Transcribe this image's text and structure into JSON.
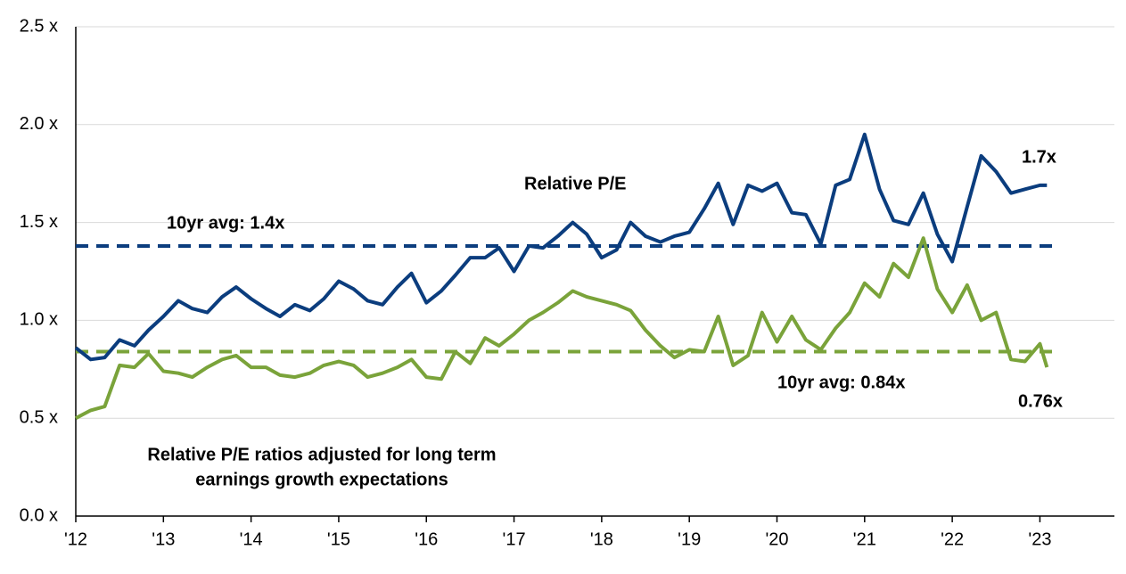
{
  "chart_data": {
    "type": "line",
    "x": [
      2012.0,
      2012.17,
      2012.33,
      2012.5,
      2012.67,
      2012.83,
      2013.0,
      2013.17,
      2013.33,
      2013.5,
      2013.67,
      2013.83,
      2014.0,
      2014.17,
      2014.33,
      2014.5,
      2014.67,
      2014.83,
      2015.0,
      2015.17,
      2015.33,
      2015.5,
      2015.67,
      2015.83,
      2016.0,
      2016.17,
      2016.33,
      2016.5,
      2016.67,
      2016.83,
      2017.0,
      2017.17,
      2017.33,
      2017.5,
      2017.67,
      2017.83,
      2018.0,
      2018.17,
      2018.33,
      2018.5,
      2018.67,
      2018.83,
      2019.0,
      2019.17,
      2019.33,
      2019.5,
      2019.67,
      2019.83,
      2020.0,
      2020.17,
      2020.33,
      2020.5,
      2020.67,
      2020.83,
      2021.0,
      2021.17,
      2021.33,
      2021.5,
      2021.67,
      2021.83,
      2022.0,
      2022.17,
      2022.33,
      2022.5,
      2022.67,
      2022.83,
      2023.0,
      2023.08
    ],
    "series": [
      {
        "name": "Relative P/E",
        "color": "#0b3d7e",
        "values": [
          0.86,
          0.8,
          0.81,
          0.9,
          0.87,
          0.95,
          1.02,
          1.1,
          1.06,
          1.04,
          1.12,
          1.17,
          1.11,
          1.06,
          1.02,
          1.08,
          1.05,
          1.11,
          1.2,
          1.16,
          1.1,
          1.08,
          1.17,
          1.24,
          1.09,
          1.15,
          1.23,
          1.32,
          1.32,
          1.37,
          1.25,
          1.38,
          1.37,
          1.43,
          1.5,
          1.44,
          1.32,
          1.36,
          1.5,
          1.43,
          1.4,
          1.43,
          1.45,
          1.57,
          1.7,
          1.49,
          1.69,
          1.66,
          1.7,
          1.55,
          1.54,
          1.39,
          1.69,
          1.72,
          1.95,
          1.67,
          1.51,
          1.49,
          1.65,
          1.44,
          1.3,
          1.58,
          1.84,
          1.76,
          1.65,
          1.67,
          1.69,
          1.69
        ]
      },
      {
        "name": "Relative P/E ratios adjusted for long term earnings growth expectations",
        "color": "#7aa33a",
        "values": [
          0.5,
          0.54,
          0.56,
          0.77,
          0.76,
          0.83,
          0.74,
          0.73,
          0.71,
          0.76,
          0.8,
          0.82,
          0.76,
          0.76,
          0.72,
          0.71,
          0.73,
          0.77,
          0.79,
          0.77,
          0.71,
          0.73,
          0.76,
          0.8,
          0.71,
          0.7,
          0.84,
          0.78,
          0.91,
          0.87,
          0.93,
          1.0,
          1.04,
          1.09,
          1.15,
          1.12,
          1.1,
          1.08,
          1.05,
          0.95,
          0.87,
          0.81,
          0.85,
          0.84,
          1.02,
          0.77,
          0.82,
          1.04,
          0.89,
          1.02,
          0.9,
          0.85,
          0.96,
          1.04,
          1.19,
          1.12,
          1.29,
          1.22,
          1.42,
          1.16,
          1.04,
          1.18,
          1.0,
          1.04,
          0.8,
          0.79,
          0.88,
          0.76
        ]
      }
    ],
    "averages": [
      {
        "label": "10yr avg: 1.4x",
        "value": 1.38,
        "color": "#0b3d7e"
      },
      {
        "label": "10yr avg: 0.84x",
        "value": 0.84,
        "color": "#7aa33a"
      }
    ],
    "annotations": [
      {
        "text": "Relative P/E",
        "color": "#0b3d7e"
      },
      {
        "text": "1.7x",
        "color": "#0b3d7e"
      },
      {
        "text": "0.76x",
        "color": "#7aa33a"
      },
      {
        "text": [
          "Relative P/E ratios adjusted for long term",
          "earnings growth expectations"
        ],
        "color": "#7aa33a"
      }
    ],
    "xlim": [
      2012,
      2023.85
    ],
    "xticks": [
      {
        "value": 2012,
        "label": "'12"
      },
      {
        "value": 2013,
        "label": "'13"
      },
      {
        "value": 2014,
        "label": "'14"
      },
      {
        "value": 2015,
        "label": "'15"
      },
      {
        "value": 2016,
        "label": "'16"
      },
      {
        "value": 2017,
        "label": "'17"
      },
      {
        "value": 2018,
        "label": "'18"
      },
      {
        "value": 2019,
        "label": "'19"
      },
      {
        "value": 2020,
        "label": "'20"
      },
      {
        "value": 2021,
        "label": "'21"
      },
      {
        "value": 2022,
        "label": "'22"
      },
      {
        "value": 2023,
        "label": "'23"
      }
    ],
    "ylim": [
      0,
      2.5
    ],
    "yticks": [
      {
        "value": 0,
        "label": "0.0 x"
      },
      {
        "value": 0.5,
        "label": "0.5 x"
      },
      {
        "value": 1.0,
        "label": "1.0 x"
      },
      {
        "value": 1.5,
        "label": "1.5 x"
      },
      {
        "value": 2.0,
        "label": "2.0 x"
      },
      {
        "value": 2.5,
        "label": "2.5 x"
      }
    ],
    "grid": true
  }
}
